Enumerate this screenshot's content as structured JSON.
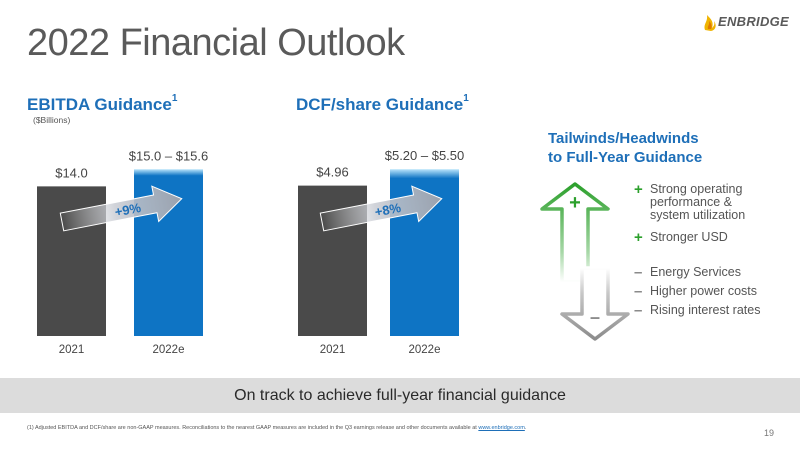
{
  "slide": {
    "title": "2022 Financial Outlook",
    "logo_text": "ENBRIDGE",
    "page_number": "19"
  },
  "colors": {
    "dark_bar": "#4a4a4a",
    "blue_bar": "#0e74c4",
    "light_blue_cap": "#8fd0f5",
    "heading_blue": "#1e6fb8",
    "tailwind_green": "#2ca02c",
    "headwind_gray": "#8c8c8c"
  },
  "chart_data": [
    {
      "type": "bar",
      "title": "EBITDA Guidance",
      "title_sup": "1",
      "subtitle": "($Billions)",
      "categories": [
        "2021",
        "2022e"
      ],
      "values": [
        14.0,
        15.3
      ],
      "ranges": [
        null,
        [
          15.0,
          15.6
        ]
      ],
      "labels": [
        "$14.0",
        "$15.0 – $15.6"
      ],
      "growth_label": "+9%",
      "ylim": [
        0,
        16.0
      ]
    },
    {
      "type": "bar",
      "title": "DCF/share Guidance",
      "title_sup": "1",
      "subtitle": "",
      "categories": [
        "2021",
        "2022e"
      ],
      "values": [
        4.96,
        5.35
      ],
      "ranges": [
        null,
        [
          5.2,
          5.5
        ]
      ],
      "labels": [
        "$4.96",
        "$5.20 – $5.50"
      ],
      "growth_label": "+8%",
      "ylim": [
        0,
        5.64
      ]
    }
  ],
  "tailwinds_panel": {
    "title_line1": "Tailwinds/Headwinds",
    "title_line2": "to Full-Year Guidance",
    "up_arrow_symbol": "+",
    "down_arrow_symbol": "–",
    "tailwinds": [
      {
        "symbol": "+",
        "lines": [
          "Strong operating",
          "performance &",
          "system utilization"
        ]
      },
      {
        "symbol": "+",
        "lines": [
          "Stronger USD"
        ]
      }
    ],
    "headwinds": [
      {
        "symbol": "–",
        "lines": [
          "Energy Services"
        ]
      },
      {
        "symbol": "–",
        "lines": [
          "Higher power costs"
        ]
      },
      {
        "symbol": "–",
        "lines": [
          "Rising interest rates"
        ]
      }
    ]
  },
  "banner": {
    "text": "On track to achieve full-year financial guidance"
  },
  "footnote": {
    "text": "(1) Adjusted EBITDA and DCF/share are non-GAAP measures. Reconciliations to the nearest GAAP measures are included in the Q3 earnings release and other documents available at ",
    "link_text": "www.enbridge.com",
    "suffix": "."
  }
}
